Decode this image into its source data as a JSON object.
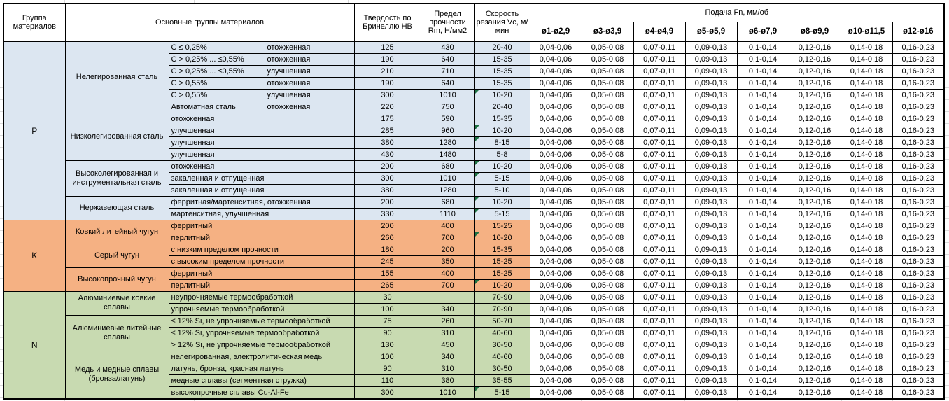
{
  "header": {
    "col_group": "Группа материалов",
    "col_main": "Основные группы материалов",
    "col_hb": "Твердость по Бринеллю HB",
    "col_rm": "Предел прочности Rm, Н/мм2",
    "col_vc": "Скорость резания Vc, м/мин",
    "feed_title": "Подача Fn, мм/об",
    "feed_cols": [
      "ø1-ø2,9",
      "ø3-ø3,9",
      "ø4-ø4,9",
      "ø5-ø5,9",
      "ø6-ø7,9",
      "ø8-ø9,9",
      "ø10-ø11,5",
      "ø12-ø16"
    ]
  },
  "feeds_per_row": [
    "0,04-0,06",
    "0,05-0,08",
    "0,07-0,11",
    "0,09-0,13",
    "0,1-0,14",
    "0,12-0,16",
    "0,14-0,18",
    "0,16-0,23"
  ],
  "colors": {
    "section_P": "#dce6f1",
    "section_K": "#f5b183",
    "section_N": "#c8dab1",
    "flag_triangle": "#1f7244",
    "border": "#000000"
  },
  "sections": [
    {
      "code": "P",
      "families": [
        {
          "name": "Нелегированная сталь",
          "rows": [
            {
              "sub1": "C ≤ 0,25%",
              "sub2": "отожженная",
              "hb": "125",
              "rm": "430",
              "vc": "20-40",
              "flag": false
            },
            {
              "sub1": "C > 0,25% ... ≤0,55%",
              "sub2": "отожженная",
              "hb": "190",
              "rm": "640",
              "vc": "15-35",
              "flag": false
            },
            {
              "sub1": "C > 0,25% ... ≤0,55%",
              "sub2": "улучшенная",
              "hb": "210",
              "rm": "710",
              "vc": "15-35",
              "flag": false
            },
            {
              "sub1": "C > 0,55%",
              "sub2": "отожженная",
              "hb": "190",
              "rm": "640",
              "vc": "15-35",
              "flag": false
            },
            {
              "sub1": "C > 0,55%",
              "sub2": "улучшенная",
              "hb": "300",
              "rm": "1010",
              "vc": "10-20",
              "flag": true
            },
            {
              "sub1": "Автоматная сталь",
              "sub2": "отожженная",
              "hb": "220",
              "rm": "750",
              "vc": "20-40",
              "flag": false
            }
          ]
        },
        {
          "name": "Низколегированная сталь",
          "rows": [
            {
              "sub": "отожженная",
              "hb": "175",
              "rm": "590",
              "vc": "15-35",
              "flag": false
            },
            {
              "sub": "улучшенная",
              "hb": "285",
              "rm": "960",
              "vc": "10-20",
              "flag": true
            },
            {
              "sub": "улучшенная",
              "hb": "380",
              "rm": "1280",
              "vc": "8-15",
              "flag": true
            },
            {
              "sub": "улучшенная",
              "hb": "430",
              "rm": "1480",
              "vc": "5-8",
              "flag": false
            }
          ]
        },
        {
          "name": "Высоколегированная и инструментальная сталь",
          "rows": [
            {
              "sub": "отожженная",
              "hb": "200",
              "rm": "680",
              "vc": "10-20",
              "flag": true
            },
            {
              "sub": "закаленная и отпущенная",
              "hb": "300",
              "rm": "1010",
              "vc": "5-15",
              "flag": true
            },
            {
              "sub": "закаленная и отпущенная",
              "hb": "380",
              "rm": "1280",
              "vc": "5-10",
              "flag": false
            }
          ]
        },
        {
          "name": "Нержавеющая сталь",
          "rows": [
            {
              "sub": "ферритная/мартенситная, отожженная",
              "hb": "200",
              "rm": "680",
              "vc": "10-20",
              "flag": true
            },
            {
              "sub": "мартенситная, улучшенная",
              "hb": "330",
              "rm": "1110",
              "vc": "5-15",
              "flag": true
            }
          ]
        }
      ]
    },
    {
      "code": "K",
      "families": [
        {
          "name": "Ковкий литейный чугун",
          "rows": [
            {
              "sub": "ферритный",
              "hb": "200",
              "rm": "400",
              "vc": "15-25",
              "flag": false
            },
            {
              "sub": "перлитный",
              "hb": "260",
              "rm": "700",
              "vc": "10-20",
              "flag": true
            }
          ]
        },
        {
          "name": "Серый чугун",
          "rows": [
            {
              "sub": "с низким пределом прочности",
              "hb": "180",
              "rm": "200",
              "vc": "15-35",
              "flag": false
            },
            {
              "sub": "с высоким пределом прочности",
              "hb": "245",
              "rm": "350",
              "vc": "15-25",
              "flag": false
            }
          ]
        },
        {
          "name": "Высокопрочный чугун",
          "rows": [
            {
              "sub": "ферритный",
              "hb": "155",
              "rm": "400",
              "vc": "15-25",
              "flag": false
            },
            {
              "sub": "перлитный",
              "hb": "265",
              "rm": "700",
              "vc": "10-20",
              "flag": true
            }
          ]
        }
      ]
    },
    {
      "code": "N",
      "families": [
        {
          "name": "Алюминиевые ковкие сплавы",
          "rows": [
            {
              "sub": "неупрочняемые термообработкой",
              "hb": "30",
              "rm": "",
              "vc": "70-90",
              "flag": false
            },
            {
              "sub": "упрочняемые термообработкой",
              "hb": "100",
              "rm": "340",
              "vc": "70-90",
              "flag": false
            }
          ]
        },
        {
          "name": "Алюминиевые литейные сплавы",
          "rows": [
            {
              "sub": "≤ 12% Si, не упрочняемые термообработкой",
              "hb": "75",
              "rm": "260",
              "vc": "50-70",
              "flag": false
            },
            {
              "sub": "≤ 12% Si, упрочняемые термообработкой",
              "hb": "90",
              "rm": "310",
              "vc": "40-60",
              "flag": false
            },
            {
              "sub": "> 12% Si, не упрочняемые термообработкой",
              "hb": "130",
              "rm": "450",
              "vc": "30-50",
              "flag": false
            }
          ]
        },
        {
          "name": "Медь и медные сплавы (бронза/латунь)",
          "rows": [
            {
              "sub": "нелегированная, электролитическая медь",
              "hb": "100",
              "rm": "340",
              "vc": "40-60",
              "flag": false
            },
            {
              "sub": "латунь, бронза, красная латунь",
              "hb": "90",
              "rm": "310",
              "vc": "30-50",
              "flag": false
            },
            {
              "sub": "медные сплавы (сегментная стружка)",
              "hb": "110",
              "rm": "380",
              "vc": "35-55",
              "flag": false
            },
            {
              "sub": "высокопрочные сплавы Cu-Al-Fe",
              "hb": "300",
              "rm": "1010",
              "vc": "5-15",
              "flag": true
            }
          ]
        }
      ]
    }
  ]
}
